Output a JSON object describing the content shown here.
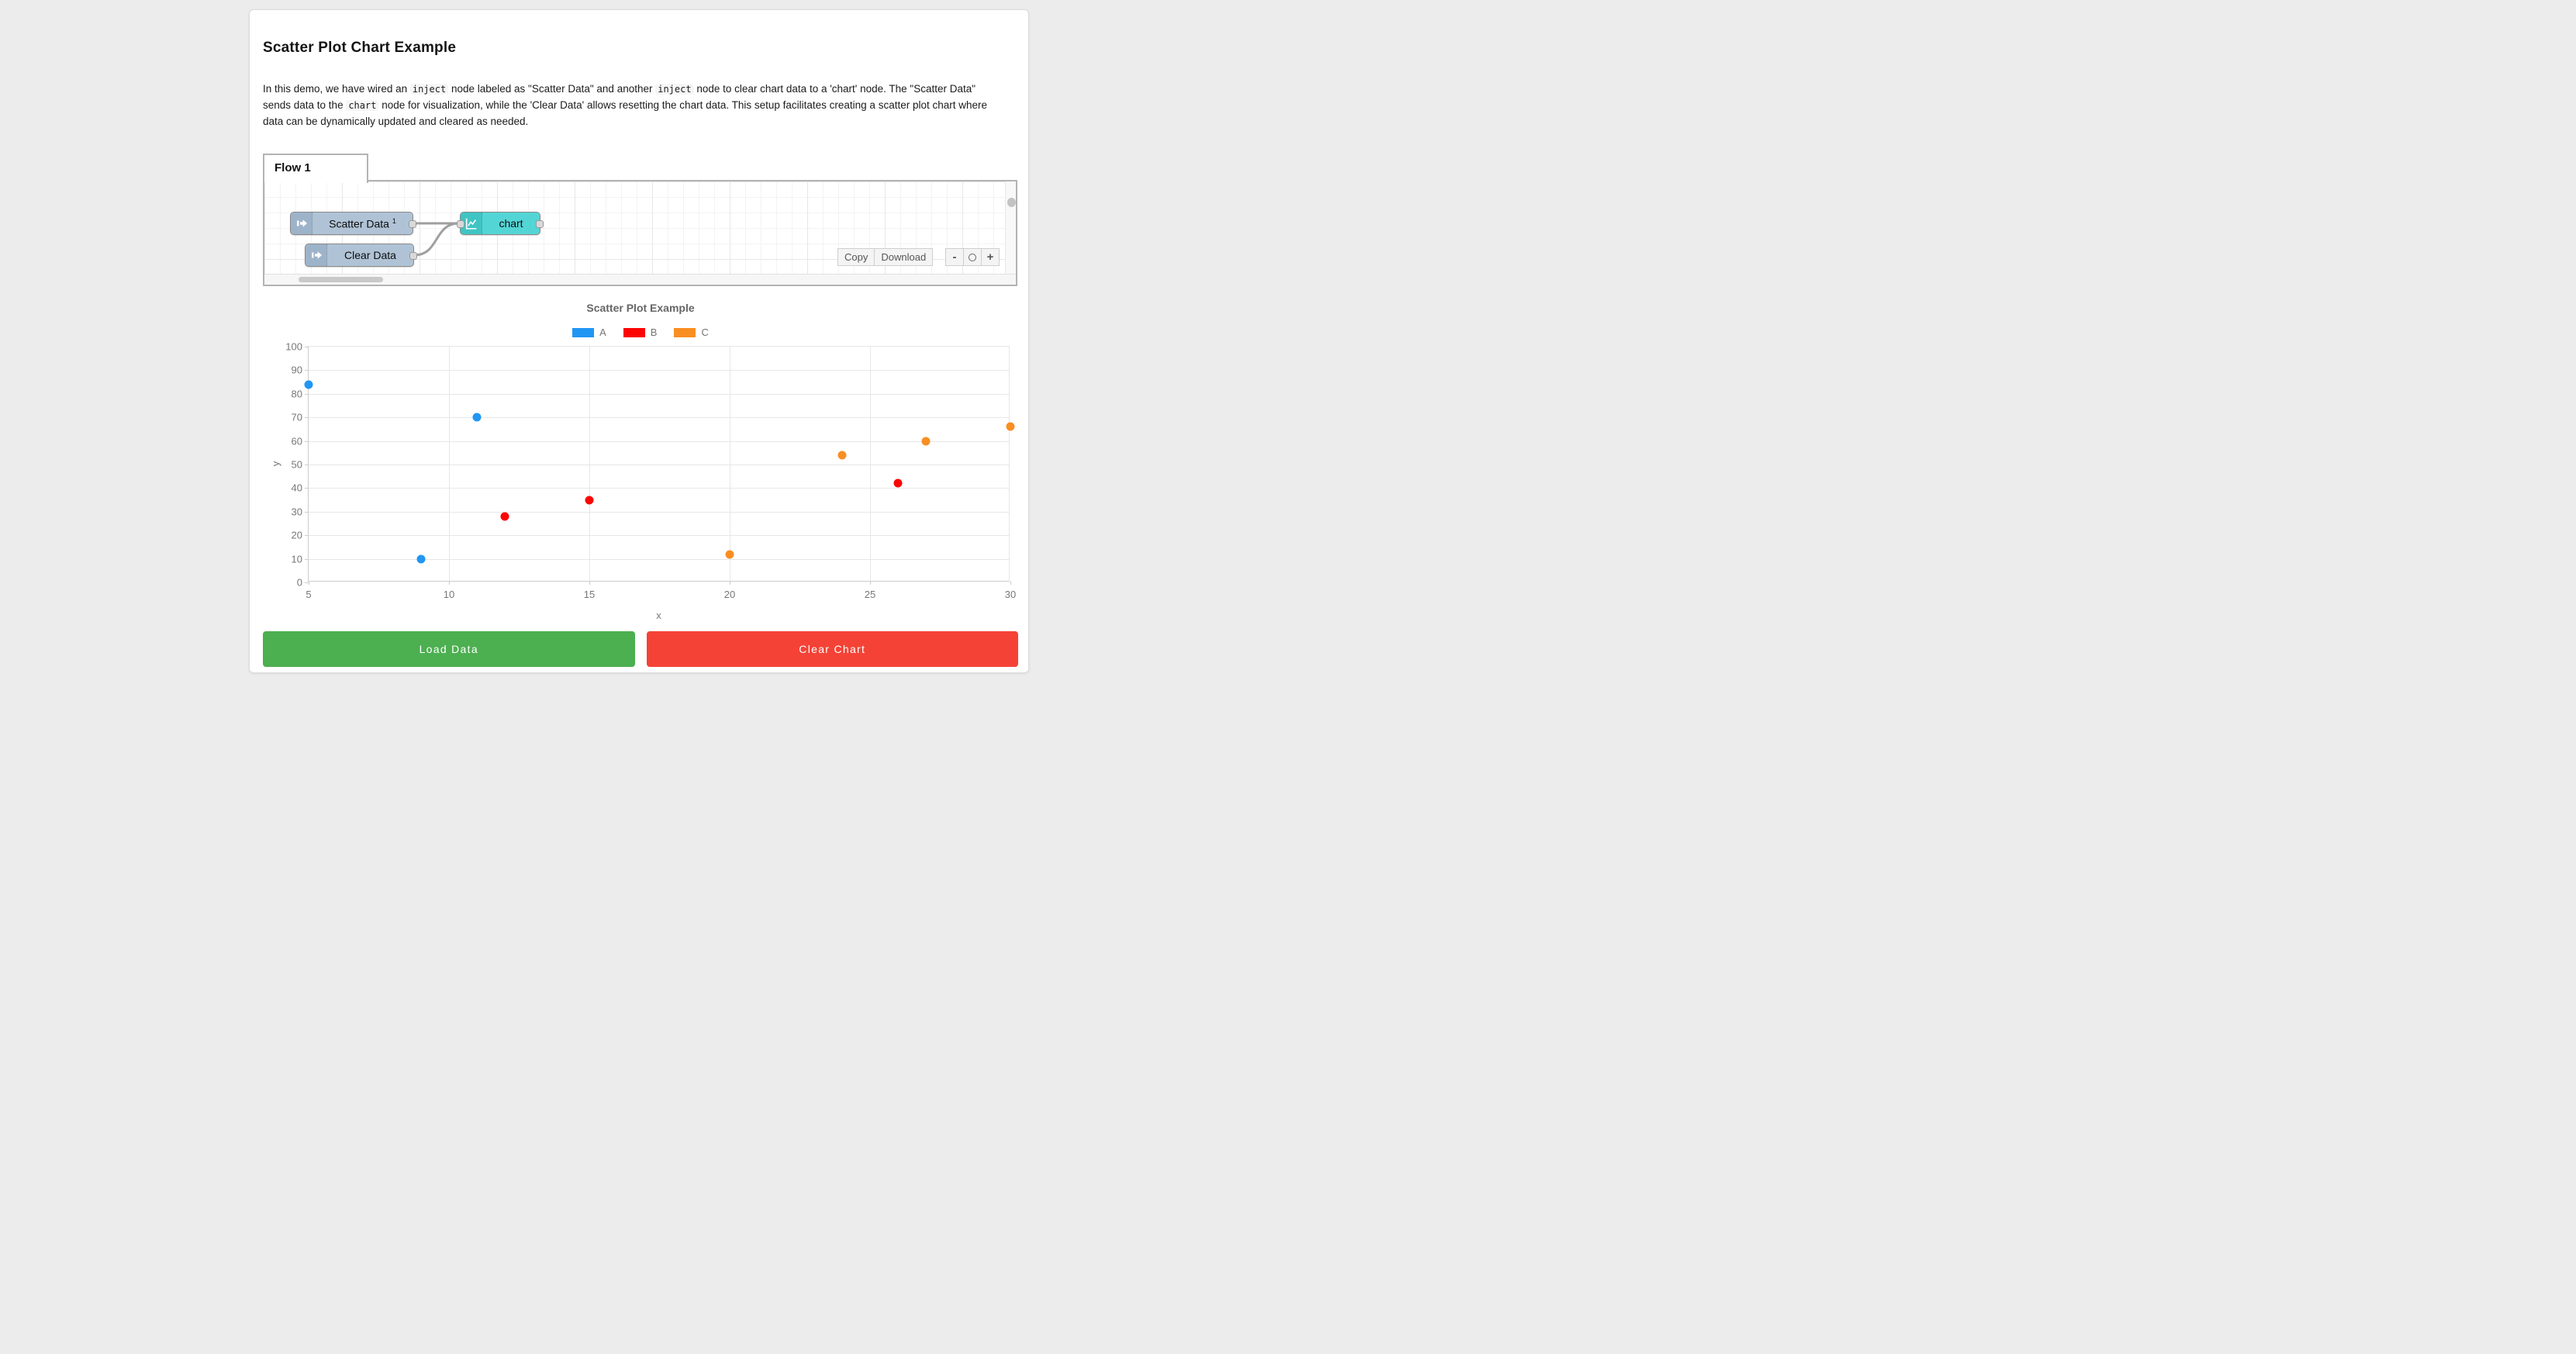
{
  "header": {
    "title": "Scatter Plot Chart Example"
  },
  "description": {
    "segments": [
      {
        "t": "text",
        "v": "In this demo, we have wired an "
      },
      {
        "t": "code",
        "v": "inject"
      },
      {
        "t": "text",
        "v": " node labeled as \"Scatter Data\" and another "
      },
      {
        "t": "code",
        "v": "inject"
      },
      {
        "t": "text",
        "v": " node to clear chart data to a 'chart' node. The \"Scatter Data\" sends data to the "
      },
      {
        "t": "code",
        "v": "chart"
      },
      {
        "t": "text",
        "v": " node for visualization, while the 'Clear Data' allows resetting the chart data. This setup facilitates creating a scatter plot chart where data can be dynamically updated and cleared as needed."
      }
    ]
  },
  "flow": {
    "tab_label": "Flow 1",
    "nodes": {
      "scatter": {
        "label": "Scatter Data",
        "sup": "1"
      },
      "clear": {
        "label": "Clear Data"
      },
      "chart": {
        "label": "chart"
      }
    },
    "actions": {
      "copy": "Copy",
      "download": "Download"
    },
    "zoom_controls": {
      "zoom_out": "-",
      "zoom_in": "+"
    }
  },
  "chart_data": {
    "type": "scatter",
    "title": "Scatter Plot Example",
    "xlabel": "x",
    "ylabel": "y",
    "xlim": [
      5,
      30
    ],
    "ylim": [
      0,
      100
    ],
    "x_ticks": [
      5,
      10,
      15,
      20,
      25,
      30
    ],
    "y_ticks": [
      0,
      10,
      20,
      30,
      40,
      50,
      60,
      70,
      80,
      90,
      100
    ],
    "grid": true,
    "legend_position": "top",
    "series": [
      {
        "name": "A",
        "color": "#2196f3",
        "points": [
          [
            5,
            84
          ],
          [
            9,
            10
          ],
          [
            11,
            70
          ]
        ]
      },
      {
        "name": "B",
        "color": "#fb0505",
        "points": [
          [
            12,
            28
          ],
          [
            15,
            35
          ],
          [
            26,
            42
          ]
        ]
      },
      {
        "name": "C",
        "color": "#f98e23",
        "points": [
          [
            20,
            12
          ],
          [
            24,
            54
          ],
          [
            27,
            60
          ],
          [
            30,
            66
          ]
        ]
      }
    ]
  },
  "footer_buttons": {
    "load": "Load Data",
    "clear": "Clear Chart"
  },
  "colors": {
    "load_button": "#4caf50",
    "clear_button": "#f44336",
    "wire": "#9f9f9f"
  }
}
